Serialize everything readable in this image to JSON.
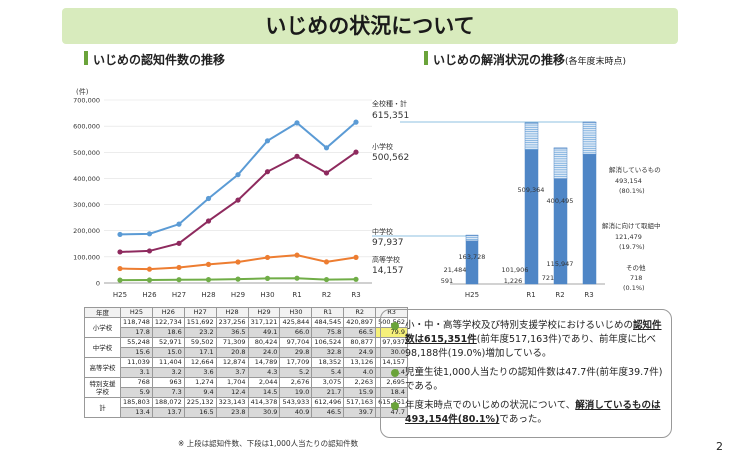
{
  "title": "いじめの状況について",
  "left_section_title": "いじめの認知件数の推移",
  "right_section_title": "いじめの解消状況の推移",
  "right_section_subtitle": "(各年度末時点)",
  "chart_data": [
    {
      "type": "line",
      "unit": "(件)",
      "x": [
        "H25",
        "H26",
        "H27",
        "H28",
        "H29",
        "H30",
        "R1",
        "R2",
        "R3"
      ],
      "ylim": [
        0,
        700000
      ],
      "yticks": [
        "0",
        "100,000",
        "200,000",
        "300,000",
        "400,000",
        "500,000",
        "600,000",
        "700,000"
      ],
      "series": [
        {
          "name": "全校種・計",
          "values": [
            185803,
            188072,
            225132,
            323143,
            414378,
            543933,
            612496,
            517163,
            615351
          ],
          "color": "#5b9bd5",
          "label": "615,351"
        },
        {
          "name": "小学校",
          "values": [
            118748,
            122734,
            151692,
            237256,
            317121,
            425844,
            484545,
            420897,
            500562
          ],
          "color": "#8e2a5e",
          "label": "500,562"
        },
        {
          "name": "中学校",
          "values": [
            55248,
            52971,
            59502,
            71309,
            80424,
            97704,
            106524,
            80877,
            97937
          ],
          "color": "#ed7d31",
          "label": "97,937"
        },
        {
          "name": "高等学校",
          "values": [
            11039,
            11404,
            12664,
            12874,
            14789,
            17709,
            18352,
            13126,
            14157
          ],
          "color": "#70ad47",
          "label": "14,157"
        }
      ]
    },
    {
      "type": "bar",
      "categories": [
        "H25",
        "R1",
        "R2",
        "R3"
      ],
      "series": [
        {
          "name": "解消しているもの",
          "values": [
            163728,
            509364,
            400495,
            493154
          ],
          "color": "#4f86c6"
        },
        {
          "name": "解消に向けて取組中",
          "values": [
            21484,
            101906,
            115947,
            121479
          ],
          "color": "#9dc3e6"
        },
        {
          "name": "その他",
          "values": [
            591,
            1226,
            721,
            718
          ],
          "color": "#ffffff"
        }
      ],
      "labels": {
        "h25_resolved": "163,728",
        "h25_ongoing": "21,484",
        "h25_other": "591",
        "r1_resolved": "509,364",
        "r1_ongoing": "101,906",
        "r1_other": "1,226",
        "r2_resolved": "400,495",
        "r2_ongoing": "115,947",
        "r2_other": "721"
      },
      "annotations": {
        "resolved_label": "解消しているもの",
        "resolved_value": "493,154",
        "resolved_pct": "(80.1%)",
        "ongoing_label": "解消に向けて取組中",
        "ongoing_value": "121,479",
        "ongoing_pct": "(19.7%)",
        "other_label": "その他",
        "other_value": "718",
        "other_pct": "(0.1%)"
      }
    }
  ],
  "table": {
    "header": [
      "年度",
      "H25",
      "H26",
      "H27",
      "H28",
      "H29",
      "H30",
      "R1",
      "R2",
      "R3"
    ],
    "rows": [
      {
        "label": "小学校",
        "counts": [
          "118,748",
          "122,734",
          "151,692",
          "237,256",
          "317,121",
          "425,844",
          "484,545",
          "420,897",
          "500,562"
        ],
        "per": [
          "17.8",
          "18.6",
          "23.2",
          "36.5",
          "49.1",
          "66.0",
          "75.8",
          "66.5",
          "79.9"
        ]
      },
      {
        "label": "中学校",
        "counts": [
          "55,248",
          "52,971",
          "59,502",
          "71,309",
          "80,424",
          "97,704",
          "106,524",
          "80,877",
          "97,937"
        ],
        "per": [
          "15.6",
          "15.0",
          "17.1",
          "20.8",
          "24.0",
          "29.8",
          "32.8",
          "24.9",
          "30.0"
        ]
      },
      {
        "label": "高等学校",
        "counts": [
          "11,039",
          "11,404",
          "12,664",
          "12,874",
          "14,789",
          "17,709",
          "18,352",
          "13,126",
          "14,157"
        ],
        "per": [
          "3.1",
          "3.2",
          "3.6",
          "3.7",
          "4.3",
          "5.2",
          "5.4",
          "4.0",
          "4.4"
        ]
      },
      {
        "label": "特別支援学校",
        "counts": [
          "768",
          "963",
          "1,274",
          "1,704",
          "2,044",
          "2,676",
          "3,075",
          "2,263",
          "2,695"
        ],
        "per": [
          "5.9",
          "7.3",
          "9.4",
          "12.4",
          "14.5",
          "19.0",
          "21.7",
          "15.9",
          "18.4"
        ]
      },
      {
        "label": "計",
        "counts": [
          "185,803",
          "188,072",
          "225,132",
          "323,143",
          "414,378",
          "543,933",
          "612,496",
          "517,163",
          "615,351"
        ],
        "per": [
          "13.4",
          "13.7",
          "16.5",
          "23.8",
          "30.9",
          "40.9",
          "46.5",
          "39.7",
          "47.7"
        ]
      }
    ],
    "note": "※ 上段は認知件数、下段は1,000人当たりの認知件数"
  },
  "bullets": [
    {
      "pre": "小・中・高等学校及び特別支援学校におけるいじめの",
      "em": "認知件数は615,351件",
      "post": "(前年度517,163件)であり、前年度に比べ98,188件(19.0%)増加している。"
    },
    {
      "pre": "児童生徒1,000人当たりの認知件数は47.7件(前年度39.7件)である。",
      "em": "",
      "post": ""
    },
    {
      "pre": "年度末時点でのいじめの状況について、",
      "em": "解消しているものは493,154件(80.1%)",
      "post": "であった。"
    }
  ],
  "page_number": "2"
}
